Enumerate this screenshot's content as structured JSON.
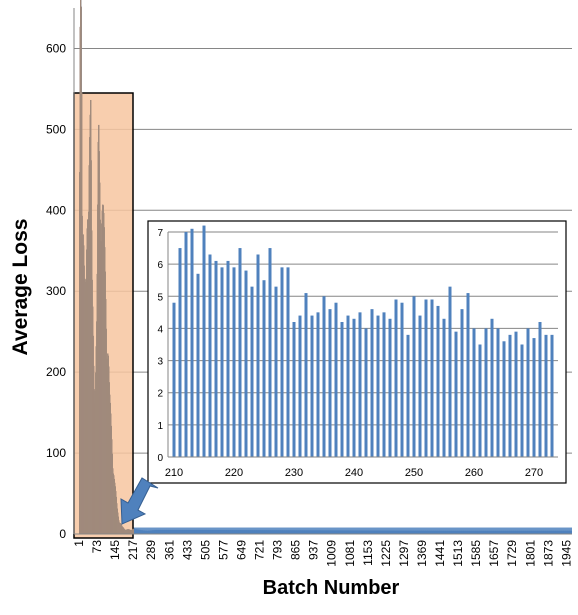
{
  "chart_data": [
    {
      "type": "bar",
      "xlabel": "Batch Number",
      "ylabel": "Average Loss",
      "ylim": [
        0,
        650
      ],
      "yticks": [
        0,
        100,
        200,
        300,
        400,
        500,
        600
      ],
      "xtick_labels": [
        "1",
        "73",
        "145",
        "217",
        "289",
        "361",
        "433",
        "505",
        "577",
        "649",
        "721",
        "793",
        "865",
        "937",
        "1009",
        "1081",
        "1153",
        "1225",
        "1297",
        "1369",
        "1441",
        "1513",
        "1585",
        "1657",
        "1729",
        "1801",
        "1873",
        "1945"
      ],
      "grid": true,
      "bar_color": "#4f81bd",
      "highlight_color": "#f7c6a0",
      "series": [
        {
          "x_range": [
            1,
            1960
          ],
          "points": [
            [
              1,
              380
            ],
            [
              4,
              625
            ],
            [
              8,
              625
            ],
            [
              11,
              450
            ],
            [
              15,
              390
            ],
            [
              20,
              280
            ],
            [
              26,
              250
            ],
            [
              32,
              380
            ],
            [
              38,
              490
            ],
            [
              45,
              470
            ],
            [
              50,
              280
            ],
            [
              58,
              200
            ],
            [
              64,
              190
            ],
            [
              70,
              240
            ],
            [
              76,
              450
            ],
            [
              82,
              430
            ],
            [
              90,
              380
            ],
            [
              98,
              330
            ],
            [
              106,
              280
            ],
            [
              114,
              220
            ],
            [
              120,
              150
            ],
            [
              130,
              110
            ],
            [
              140,
              60
            ],
            [
              150,
              30
            ],
            [
              160,
              15
            ],
            [
              170,
              8
            ],
            [
              180,
              6
            ],
            [
              190,
              5
            ],
            [
              200,
              5
            ],
            [
              220,
              6
            ],
            [
              250,
              4.5
            ],
            [
              270,
              4
            ],
            [
              300,
              5
            ],
            [
              500,
              5
            ],
            [
              1000,
              4.5
            ],
            [
              1500,
              4
            ],
            [
              1960,
              4
            ]
          ]
        }
      ]
    },
    {
      "type": "bar",
      "xlim": [
        209,
        274
      ],
      "ylim": [
        0,
        7
      ],
      "xticks": [
        210,
        220,
        230,
        240,
        250,
        260,
        270
      ],
      "yticks": [
        0,
        1,
        2,
        3,
        4,
        5,
        6,
        7
      ],
      "grid": true,
      "bar_color": "#4f81bd",
      "x": [
        210,
        211,
        212,
        213,
        214,
        215,
        216,
        217,
        218,
        219,
        220,
        221,
        222,
        223,
        224,
        225,
        226,
        227,
        228,
        229,
        230,
        231,
        232,
        233,
        234,
        235,
        236,
        237,
        238,
        239,
        240,
        241,
        242,
        243,
        244,
        245,
        246,
        247,
        248,
        249,
        250,
        251,
        252,
        253,
        254,
        255,
        256,
        257,
        258,
        259,
        260,
        261,
        262,
        263,
        264,
        265,
        266,
        267,
        268,
        269,
        270,
        271,
        272,
        273
      ],
      "values": [
        4.8,
        6.5,
        7.0,
        7.1,
        5.7,
        7.2,
        6.3,
        6.1,
        5.9,
        6.1,
        5.9,
        6.5,
        5.8,
        5.3,
        6.3,
        5.5,
        6.5,
        5.3,
        5.9,
        5.9,
        4.2,
        4.4,
        5.1,
        4.4,
        4.5,
        5.0,
        4.6,
        4.8,
        4.2,
        4.4,
        4.3,
        4.5,
        4.0,
        4.6,
        4.4,
        4.5,
        4.3,
        4.9,
        4.8,
        3.8,
        5.0,
        4.4,
        4.9,
        4.9,
        4.7,
        4.3,
        5.3,
        3.9,
        4.6,
        5.1,
        4.0,
        3.5,
        4.0,
        4.3,
        4.0,
        3.6,
        3.8,
        3.9,
        3.5,
        4.0,
        3.7,
        4.2,
        3.8,
        3.8
      ]
    }
  ]
}
